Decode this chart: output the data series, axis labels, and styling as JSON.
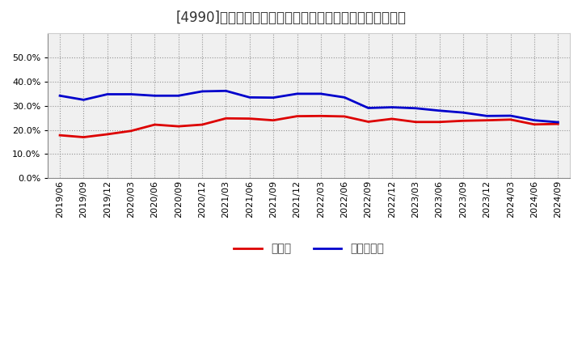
{
  "title": "[4990]　現頲金、有利子負債の総資産に対する比率の推移",
  "x_labels": [
    "2019/06",
    "2019/09",
    "2019/12",
    "2020/03",
    "2020/06",
    "2020/09",
    "2020/12",
    "2021/03",
    "2021/06",
    "2021/09",
    "2021/12",
    "2022/03",
    "2022/06",
    "2022/09",
    "2022/12",
    "2023/03",
    "2023/06",
    "2023/09",
    "2023/12",
    "2024/03",
    "2024/06",
    "2024/09"
  ],
  "cash": [
    0.178,
    0.17,
    0.182,
    0.196,
    0.222,
    0.215,
    0.222,
    0.248,
    0.247,
    0.24,
    0.257,
    0.258,
    0.256,
    0.234,
    0.246,
    0.233,
    0.233,
    0.238,
    0.24,
    0.243,
    0.223,
    0.225
  ],
  "debt": [
    0.342,
    0.325,
    0.348,
    0.348,
    0.342,
    0.342,
    0.36,
    0.362,
    0.335,
    0.334,
    0.35,
    0.35,
    0.335,
    0.291,
    0.294,
    0.29,
    0.28,
    0.272,
    0.258,
    0.259,
    0.24,
    0.232
  ],
  "cash_color": "#dd0000",
  "debt_color": "#0000cc",
  "legend_cash": "現頲金",
  "legend_debt": "有利子負債",
  "background_color": "#ffffff",
  "plot_bg_color": "#f0f0f0",
  "grid_color": "#888888",
  "ylim": [
    0.0,
    0.6
  ],
  "yticks": [
    0.0,
    0.1,
    0.2,
    0.3,
    0.4,
    0.5
  ],
  "line_width": 2.0,
  "title_fontsize": 12,
  "axis_fontsize": 8,
  "legend_fontsize": 10
}
